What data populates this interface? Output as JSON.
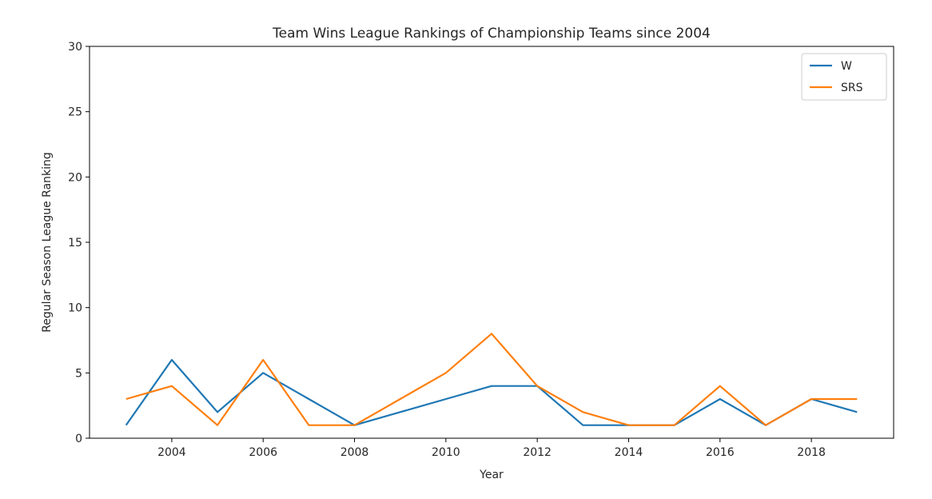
{
  "chart_data": {
    "type": "line",
    "title": "Team Wins League Rankings of Championship Teams since 2004",
    "xlabel": "Year",
    "ylabel": "Regular Season League Ranking",
    "x": [
      2003,
      2004,
      2005,
      2006,
      2007,
      2008,
      2009,
      2010,
      2011,
      2012,
      2013,
      2014,
      2015,
      2016,
      2017,
      2018,
      2019
    ],
    "series": [
      {
        "name": "W",
        "color": "#1f77b4",
        "values": [
          1,
          6,
          2,
          5,
          3,
          1,
          2,
          3,
          4,
          4,
          1,
          1,
          1,
          3,
          1,
          3,
          2
        ]
      },
      {
        "name": "SRS",
        "color": "#ff7f0e",
        "values": [
          3,
          4,
          1,
          6,
          1,
          1,
          3,
          5,
          8,
          4,
          2,
          1,
          1,
          4,
          1,
          3,
          3
        ]
      }
    ],
    "xlim": [
      2002.2,
      2019.8
    ],
    "ylim": [
      0,
      30
    ],
    "xticks": [
      "2004",
      "2006",
      "2008",
      "2010",
      "2012",
      "2014",
      "2016",
      "2018"
    ],
    "yticks": [
      "0",
      "5",
      "10",
      "15",
      "20",
      "25",
      "30"
    ],
    "grid": false,
    "legend_position": "top-right"
  }
}
